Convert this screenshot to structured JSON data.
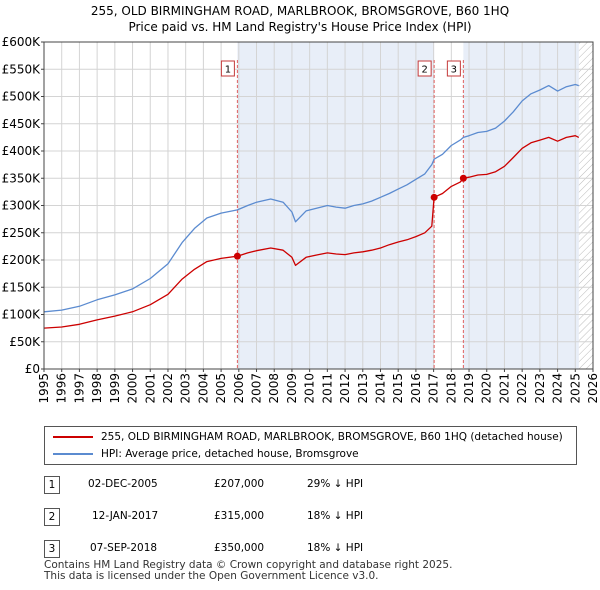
{
  "title_line1": "255, OLD BIRMINGHAM ROAD, MARLBROOK, BROMSGROVE, B60 1HQ",
  "title_line2": "Price paid vs. HM Land Registry's House Price Index (HPI)",
  "chart_data": {
    "type": "line",
    "xlim": [
      1995,
      2026
    ],
    "ylim": [
      0,
      600000
    ],
    "y_ticks": [
      0,
      50000,
      100000,
      150000,
      200000,
      250000,
      300000,
      350000,
      400000,
      450000,
      500000,
      550000,
      600000
    ],
    "y_tick_labels": [
      "£0",
      "£50K",
      "£100K",
      "£150K",
      "£200K",
      "£250K",
      "£300K",
      "£350K",
      "£400K",
      "£450K",
      "£500K",
      "£550K",
      "£600K"
    ],
    "x_ticks": [
      1995,
      1996,
      1997,
      1998,
      1999,
      2000,
      2001,
      2002,
      2003,
      2004,
      2005,
      2006,
      2007,
      2008,
      2009,
      2010,
      2011,
      2012,
      2013,
      2014,
      2015,
      2016,
      2017,
      2018,
      2019,
      2020,
      2021,
      2022,
      2023,
      2024,
      2025,
      2026
    ],
    "x_tick_labels": [
      "1995",
      "1996",
      "1997",
      "1998",
      "1999",
      "2000",
      "2001",
      "2002",
      "2003",
      "2004",
      "2005",
      "2006",
      "2007",
      "2008",
      "2009",
      "2010",
      "2011",
      "2012",
      "2013",
      "2014",
      "2015",
      "2016",
      "2017",
      "2018",
      "2019",
      "2020",
      "2021",
      "2022",
      "2023",
      "2024",
      "2025",
      "2026"
    ],
    "grid": true,
    "shaded_ranges": [
      [
        2005.92,
        2017.03
      ],
      [
        2018.68,
        2025.2
      ]
    ],
    "hatched_after": 2025.2,
    "series": [
      {
        "name": "255, OLD BIRMINGHAM ROAD, MARLBROOK, BROMSGROVE, B60 1HQ (detached house)",
        "color": "#cc0000",
        "x": [
          1995.0,
          1996.0,
          1997.0,
          1998.0,
          1999.0,
          2000.0,
          2001.0,
          2002.0,
          2002.8,
          2003.5,
          2004.2,
          2005.0,
          2005.92,
          2006.5,
          2007.0,
          2007.8,
          2008.5,
          2009.0,
          2009.2,
          2009.8,
          2010.5,
          2011.0,
          2011.5,
          2012.0,
          2012.5,
          2013.0,
          2013.5,
          2014.0,
          2014.5,
          2015.0,
          2015.5,
          2016.0,
          2016.5,
          2016.9,
          2017.03,
          2017.5,
          2018.0,
          2018.5,
          2018.68,
          2019.0,
          2019.5,
          2020.0,
          2020.5,
          2021.0,
          2021.5,
          2022.0,
          2022.5,
          2023.0,
          2023.5,
          2024.0,
          2024.5,
          2025.0,
          2025.2
        ],
        "y": [
          75000,
          77000,
          82000,
          90000,
          97000,
          105000,
          118000,
          137000,
          165000,
          183000,
          197000,
          203000,
          207000,
          213000,
          217000,
          222000,
          218000,
          205000,
          190000,
          205000,
          210000,
          213000,
          211000,
          210000,
          213000,
          215000,
          218000,
          222000,
          228000,
          233000,
          237000,
          243000,
          250000,
          262000,
          315000,
          322000,
          335000,
          343000,
          350000,
          352000,
          356000,
          357000,
          362000,
          372000,
          388000,
          405000,
          415000,
          420000,
          425000,
          418000,
          425000,
          428000,
          425000
        ]
      },
      {
        "name": "HPI: Average price, detached house, Bromsgrove",
        "color": "#5b8bd0",
        "x": [
          1995.0,
          1996.0,
          1997.0,
          1998.0,
          1999.0,
          2000.0,
          2001.0,
          2002.0,
          2002.8,
          2003.5,
          2004.2,
          2005.0,
          2005.92,
          2006.5,
          2007.0,
          2007.8,
          2008.5,
          2009.0,
          2009.2,
          2009.8,
          2010.5,
          2011.0,
          2011.5,
          2012.0,
          2012.5,
          2013.0,
          2013.5,
          2014.0,
          2014.5,
          2015.0,
          2015.5,
          2016.0,
          2016.5,
          2016.9,
          2017.03,
          2017.5,
          2018.0,
          2018.5,
          2018.68,
          2019.0,
          2019.5,
          2020.0,
          2020.5,
          2021.0,
          2021.5,
          2022.0,
          2022.5,
          2023.0,
          2023.5,
          2024.0,
          2024.5,
          2025.0,
          2025.2
        ],
        "y": [
          105000,
          108000,
          115000,
          127000,
          136000,
          147000,
          166000,
          193000,
          232000,
          258000,
          277000,
          286000,
          292000,
          300000,
          306000,
          312000,
          306000,
          288000,
          270000,
          290000,
          296000,
          300000,
          297000,
          295000,
          300000,
          303000,
          308000,
          315000,
          322000,
          330000,
          338000,
          348000,
          358000,
          375000,
          385000,
          394000,
          410000,
          420000,
          425000,
          428000,
          434000,
          436000,
          442000,
          455000,
          472000,
          492000,
          505000,
          512000,
          520000,
          510000,
          518000,
          522000,
          520000
        ]
      }
    ],
    "sales": [
      {
        "label": "1",
        "x": 2005.92,
        "y": 207000
      },
      {
        "label": "2",
        "x": 2017.03,
        "y": 315000
      },
      {
        "label": "3",
        "x": 2018.68,
        "y": 350000
      }
    ]
  },
  "legend": {
    "property_label": "255, OLD BIRMINGHAM ROAD, MARLBROOK, BROMSGROVE, B60 1HQ (detached house)",
    "hpi_label": "HPI: Average price, detached house, Bromsgrove",
    "property_color": "#cc0000",
    "hpi_color": "#5b8bd0"
  },
  "transactions": [
    {
      "num": "1",
      "date": "02-DEC-2005",
      "price": "£207,000",
      "hpi": "29% ↓ HPI"
    },
    {
      "num": "2",
      "date": "12-JAN-2017",
      "price": "£315,000",
      "hpi": "18% ↓ HPI"
    },
    {
      "num": "3",
      "date": "07-SEP-2018",
      "price": "£350,000",
      "hpi": "18% ↓ HPI"
    }
  ],
  "footer_line1": "Contains HM Land Registry data © Crown copyright and database right 2025.",
  "footer_line2": "This data is licensed under the Open Government Licence v3.0."
}
